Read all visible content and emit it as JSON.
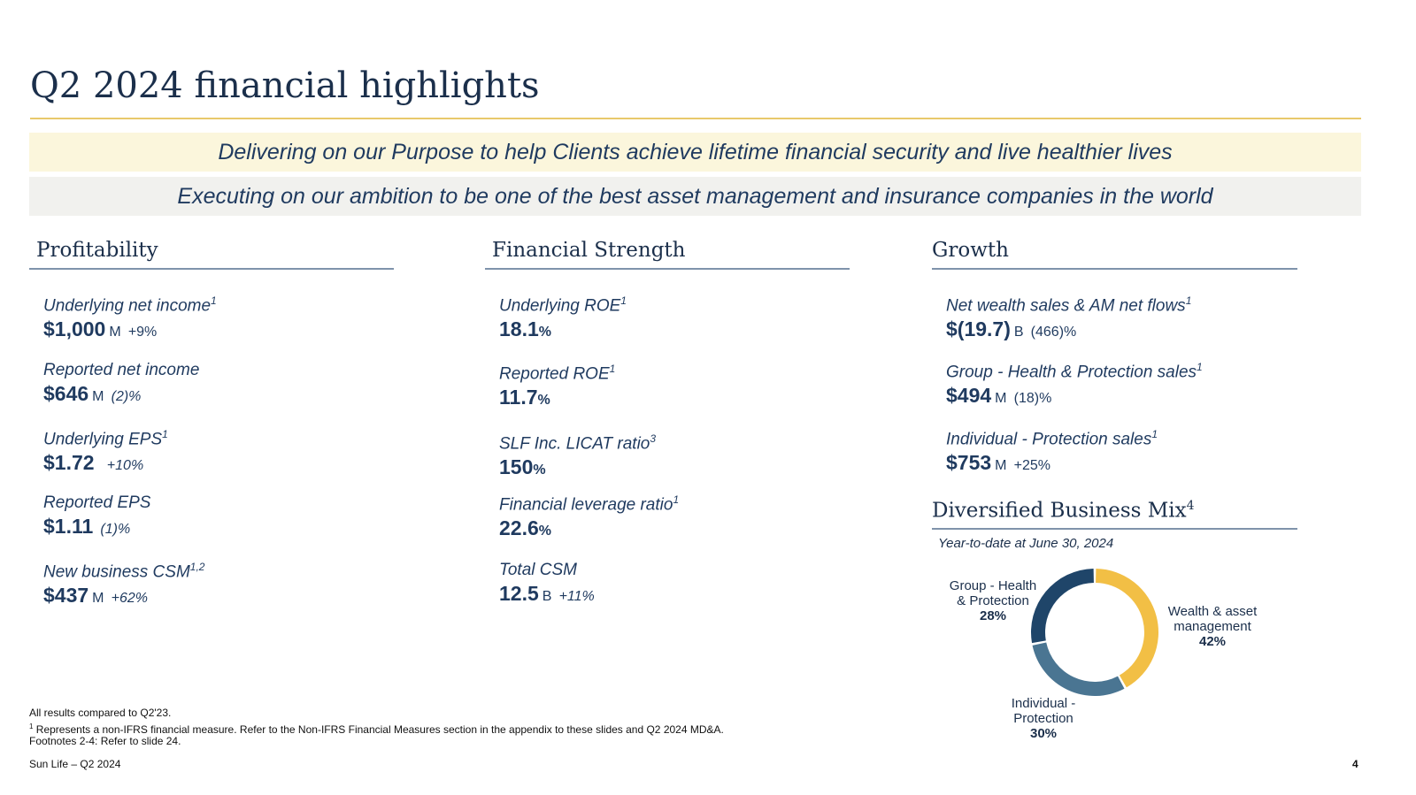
{
  "title": "Q2 2024 financial highlights",
  "banners": {
    "purpose": "Delivering on our Purpose to help Clients achieve lifetime financial security and live healthier lives",
    "ambition": "Executing on our ambition to be one of the best asset management and insurance companies in the world"
  },
  "profitability": {
    "heading": "Profitability",
    "items": [
      {
        "label": "Underlying net income",
        "sup": "1",
        "value": "$1,000",
        "unit": "M",
        "change": "+9%"
      },
      {
        "label": "Reported net income",
        "sup": "",
        "value": "$646",
        "unit": "M",
        "change": "(2)%"
      },
      {
        "label": "Underlying EPS",
        "sup": "1",
        "value": "$1.72",
        "unit": "",
        "change": "+10%"
      },
      {
        "label": "Reported EPS",
        "sup": "",
        "value": "$1.11",
        "unit": "",
        "change": "(1)%"
      },
      {
        "label": "New business CSM",
        "sup": "1,2",
        "value": "$437",
        "unit": "M",
        "change": "+62%"
      }
    ]
  },
  "financial_strength": {
    "heading": "Financial Strength",
    "items": [
      {
        "label": "Underlying ROE",
        "sup": "1",
        "value": "18.1",
        "pct": "%"
      },
      {
        "label": "Reported ROE",
        "sup": "1",
        "value": "11.7",
        "pct": "%"
      },
      {
        "label": "SLF Inc. LICAT ratio",
        "sup": "3",
        "value": "150",
        "pct": "%"
      },
      {
        "label": "Financial leverage ratio",
        "sup": "1",
        "value": "22.6",
        "pct": "%"
      },
      {
        "label": "Total CSM",
        "sup": "",
        "value": "12.5",
        "unit": "B",
        "change": "+11%"
      }
    ]
  },
  "growth": {
    "heading": "Growth",
    "items": [
      {
        "label": "Net wealth sales & AM net flows",
        "sup": "1",
        "value": "$(19.7)",
        "unit": "B",
        "change": "(466)%"
      },
      {
        "label": "Group - Health & Protection sales",
        "sup": "1",
        "value": "$494",
        "unit": "M",
        "change": "(18)%"
      },
      {
        "label": "Individual - Protection sales",
        "sup": "1",
        "value": "$753",
        "unit": "M",
        "change": "+25%"
      }
    ]
  },
  "business_mix": {
    "heading": "Diversified Business Mix",
    "heading_sup": "4",
    "subtitle": "Year-to-date at June 30, 2024",
    "segments": [
      {
        "name_line1": "Wealth & asset",
        "name_line2": "management",
        "pct_label": "42%",
        "value": 42,
        "color": "#f2bf45"
      },
      {
        "name_line1": "Individual -",
        "name_line2": "Protection",
        "pct_label": "30%",
        "value": 30,
        "color": "#4a7592"
      },
      {
        "name_line1": "Group - Health",
        "name_line2": "& Protection",
        "pct_label": "28%",
        "value": 28,
        "color": "#1f4569"
      }
    ]
  },
  "footnotes": {
    "line1": "All results compared to Q2'23.",
    "line2_sup": "1",
    "line2": " Represents a non-IFRS financial measure. Refer to the Non-IFRS Financial Measures section in the appendix to these slides and Q2 2024 MD&A.",
    "line3": "Footnotes 2-4: Refer to slide 24."
  },
  "footer": {
    "left": "Sun Life – Q2 2024",
    "page": "4"
  }
}
